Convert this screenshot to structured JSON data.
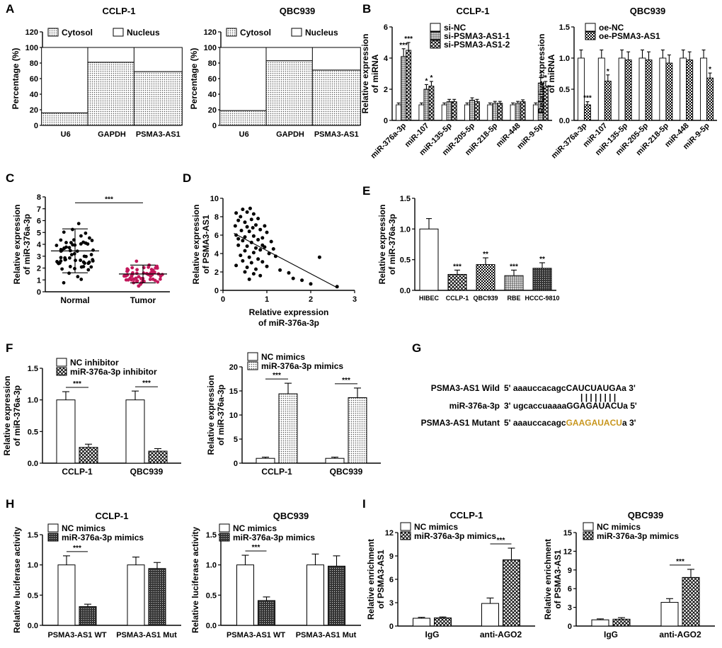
{
  "panels": {
    "A": {
      "label": "A",
      "charts": [
        {
          "title": "CCLP-1",
          "type": "stacked-bar",
          "ylabel": "Percentage (%)",
          "ylim": [
            0,
            120
          ],
          "yticks": [
            0,
            20,
            40,
            60,
            80,
            100,
            120
          ],
          "categories": [
            "U6",
            "GAPDH",
            "PSMA3-AS1"
          ],
          "legend": [
            "Cytosol",
            "Nucleus"
          ],
          "series": [
            {
              "name": "Cytosol",
              "values": [
                16,
                81,
                69
              ]
            },
            {
              "name": "Nucleus",
              "values": [
                84,
                19,
                31
              ]
            }
          ]
        },
        {
          "title": "QBC939",
          "type": "stacked-bar",
          "ylabel": "Percentage (%)",
          "ylim": [
            0,
            120
          ],
          "yticks": [
            0,
            20,
            40,
            60,
            80,
            100,
            120
          ],
          "categories": [
            "U6",
            "GAPDH",
            "PSMA3-AS1"
          ],
          "legend": [
            "Cytosol",
            "Nucleus"
          ],
          "series": [
            {
              "name": "Cytosol",
              "values": [
                19,
                83,
                71
              ]
            },
            {
              "name": "Nucleus",
              "values": [
                81,
                17,
                29
              ]
            }
          ]
        }
      ]
    },
    "B": {
      "label": "B",
      "charts": [
        {
          "title": "CCLP-1",
          "type": "bar",
          "ylabel": [
            "Relative expression",
            "of miRNA"
          ],
          "ylim": [
            0,
            6
          ],
          "yticks": [
            0,
            2,
            4,
            6
          ],
          "categories": [
            "miR-376a-3p",
            "miR-107",
            "miR-135-5p",
            "miR-205-5p",
            "miR-218-5p",
            "miR-448",
            "miR-9-5p"
          ],
          "series": [
            {
              "name": "si-NC",
              "values": [
                1.0,
                1.0,
                1.0,
                1.0,
                1.0,
                1.0,
                1.0
              ],
              "err": [
                0.12,
                0.12,
                0.12,
                0.12,
                0.12,
                0.12,
                0.12
              ],
              "sig": [
                "",
                "",
                "",
                "",
                "",
                "",
                ""
              ]
            },
            {
              "name": "si-PSMA3-AS1-1",
              "values": [
                4.1,
                2.0,
                1.2,
                1.3,
                1.1,
                1.1,
                2.4
              ],
              "err": [
                0.5,
                0.3,
                0.15,
                0.15,
                0.12,
                0.12,
                0.35
              ],
              "sig": [
                "***",
                "*",
                "",
                "",
                "",
                "",
                "*"
              ]
            },
            {
              "name": "si-PSMA3-AS1-2",
              "values": [
                4.5,
                2.2,
                1.2,
                1.2,
                1.1,
                1.2,
                2.2
              ],
              "err": [
                0.5,
                0.3,
                0.15,
                0.15,
                0.12,
                0.12,
                0.3
              ],
              "sig": [
                "***",
                "*",
                "",
                "",
                "",
                "",
                "*"
              ]
            }
          ]
        },
        {
          "title": "QBC939",
          "type": "bar",
          "ylabel": [
            "Relative expression",
            "of miRNA"
          ],
          "ylim": [
            0,
            1.5
          ],
          "yticks": [
            0.0,
            0.5,
            1.0,
            1.5
          ],
          "categories": [
            "miR-376a-3p",
            "miR-107",
            "miR-135-5p",
            "miR-205-5p",
            "miR-218-5p",
            "miR-448",
            "miR-9-5p"
          ],
          "series": [
            {
              "name": "oe-NC",
              "values": [
                1.0,
                1.0,
                1.0,
                1.0,
                1.0,
                1.0,
                1.0
              ],
              "err": [
                0.13,
                0.13,
                0.13,
                0.13,
                0.13,
                0.13,
                0.13
              ],
              "sig": [
                "",
                "",
                "",
                "",
                "",
                "",
                ""
              ]
            },
            {
              "name": "oe-PSMA3-AS1",
              "values": [
                0.25,
                0.63,
                0.97,
                0.97,
                0.92,
                0.97,
                0.68
              ],
              "err": [
                0.05,
                0.1,
                0.13,
                0.13,
                0.13,
                0.13,
                0.08
              ],
              "sig": [
                "***",
                "*",
                "",
                "",
                "",
                "",
                "*"
              ]
            }
          ]
        }
      ]
    },
    "C": {
      "label": "C",
      "type": "scatter-dot",
      "ylabel": [
        "Relative expression",
        "of miR-376a-3p"
      ],
      "ylim": [
        0,
        8
      ],
      "yticks": [
        0,
        1,
        2,
        3,
        4,
        5,
        6,
        7,
        8
      ],
      "categories": [
        "Normal",
        "Tumor"
      ],
      "mean": [
        3.45,
        1.5
      ],
      "sd": [
        1.85,
        0.75
      ],
      "sig": "***"
    },
    "D": {
      "label": "D",
      "type": "scatter",
      "xlabel": [
        "Relative expression",
        "of miR-376a-3p"
      ],
      "ylabel": [
        "Relative expression",
        "of PSMA3-AS1"
      ],
      "xlim": [
        0,
        3
      ],
      "ylim": [
        0,
        10
      ],
      "xticks": [
        0,
        1,
        2,
        3
      ],
      "yticks": [
        0,
        2,
        4,
        6,
        8,
        10
      ],
      "fit": {
        "x0": 0.25,
        "y0": 6.2,
        "x1": 2.6,
        "y1": 0.3
      },
      "points": [
        [
          0.3,
          8.4
        ],
        [
          0.45,
          8.8
        ],
        [
          0.55,
          8.5
        ],
        [
          0.62,
          8.9
        ],
        [
          0.4,
          8.0
        ],
        [
          0.7,
          8.3
        ],
        [
          0.35,
          7.6
        ],
        [
          0.5,
          7.4
        ],
        [
          0.65,
          7.7
        ],
        [
          0.8,
          7.8
        ],
        [
          0.28,
          7.0
        ],
        [
          0.55,
          6.9
        ],
        [
          0.75,
          7.1
        ],
        [
          0.95,
          7.0
        ],
        [
          0.42,
          6.5
        ],
        [
          0.6,
          6.4
        ],
        [
          0.85,
          6.6
        ],
        [
          1.0,
          6.3
        ],
        [
          0.3,
          6.0
        ],
        [
          0.5,
          5.8
        ],
        [
          0.7,
          5.9
        ],
        [
          0.9,
          5.7
        ],
        [
          0.45,
          5.4
        ],
        [
          0.65,
          5.2
        ],
        [
          0.8,
          5.5
        ],
        [
          1.1,
          5.3
        ],
        [
          0.35,
          4.9
        ],
        [
          0.55,
          4.8
        ],
        [
          0.75,
          4.6
        ],
        [
          0.95,
          4.7
        ],
        [
          0.5,
          4.3
        ],
        [
          0.7,
          4.1
        ],
        [
          0.85,
          4.4
        ],
        [
          1.05,
          4.0
        ],
        [
          0.4,
          3.8
        ],
        [
          0.6,
          3.6
        ],
        [
          0.8,
          3.4
        ],
        [
          1.2,
          3.7
        ],
        [
          0.45,
          3.2
        ],
        [
          0.65,
          3.0
        ],
        [
          0.9,
          3.1
        ],
        [
          0.3,
          2.7
        ],
        [
          0.55,
          2.5
        ],
        [
          0.75,
          2.3
        ],
        [
          1.0,
          2.6
        ],
        [
          0.5,
          2.0
        ],
        [
          0.7,
          1.8
        ],
        [
          0.85,
          1.6
        ],
        [
          0.6,
          1.2
        ],
        [
          1.3,
          2.2
        ],
        [
          1.5,
          1.9
        ],
        [
          1.6,
          1.3
        ],
        [
          1.8,
          1.1
        ],
        [
          2.0,
          0.7
        ],
        [
          2.2,
          3.6
        ],
        [
          2.6,
          0.4
        ],
        [
          0.35,
          5.6
        ],
        [
          0.68,
          6.8
        ],
        [
          0.9,
          4.9
        ],
        [
          1.15,
          4.5
        ]
      ]
    },
    "E": {
      "label": "E",
      "type": "bar",
      "ylabel": [
        "Relative expression",
        "of miR-376a-3p"
      ],
      "ylim": [
        0,
        1.5
      ],
      "yticks": [
        0.0,
        0.5,
        1.0,
        1.5
      ],
      "categories": [
        "HIBEC",
        "CCLP-1",
        "QBC939",
        "RBE",
        "HCCC-9810"
      ],
      "values": [
        1.0,
        0.26,
        0.42,
        0.24,
        0.36
      ],
      "err": [
        0.17,
        0.07,
        0.11,
        0.09,
        0.09
      ],
      "sig": [
        "",
        "***",
        "**",
        "***",
        "**"
      ]
    },
    "F": {
      "label": "F",
      "charts": [
        {
          "type": "bar",
          "ylabel": [
            "Relative expression",
            "of miR-376a-3p"
          ],
          "ylim": [
            0,
            1.5
          ],
          "yticks": [
            0.0,
            0.5,
            1.0,
            1.5
          ],
          "categories": [
            "CCLP-1",
            "QBC939"
          ],
          "series": [
            {
              "name": "NC inhibitor",
              "values": [
                1.0,
                1.0
              ],
              "err": [
                0.13,
                0.14
              ]
            },
            {
              "name": "miR-376a-3p inhibitor",
              "values": [
                0.25,
                0.19
              ],
              "err": [
                0.05,
                0.04
              ]
            }
          ],
          "sig": [
            "***",
            "***"
          ]
        },
        {
          "type": "bar",
          "ylabel": [
            "Relative expression",
            "of miR-376a-3p"
          ],
          "ylim": [
            0,
            20
          ],
          "yticks": [
            0,
            5,
            10,
            15,
            20
          ],
          "categories": [
            "CCLP-1",
            "QBC939"
          ],
          "series": [
            {
              "name": "NC mimics",
              "values": [
                1.0,
                1.0
              ],
              "err": [
                0.25,
                0.25
              ]
            },
            {
              "name": "miR-376a-3p mimics",
              "values": [
                14.4,
                13.6
              ],
              "err": [
                2.2,
                2.0
              ]
            }
          ],
          "sig": [
            "***",
            "***"
          ]
        }
      ]
    },
    "G": {
      "label": "G",
      "rows": [
        {
          "name": "PSMA3-AS1 Wild",
          "prefix": "5' aaauccacagc",
          "core": "CAUCUAUGA",
          "suffix": "a 3'"
        },
        {
          "name": "",
          "pairs": "| | | | | | | |"
        },
        {
          "name": "miR-376a-3p",
          "prefix": "3' ugcaccuaaaa",
          "core": "GGAGAUACU",
          "suffix": "a 5'"
        },
        {
          "name": "PSMA3-AS1 Mutant",
          "prefix": "5' aaauccacagc",
          "core": "GAAGAUACU",
          "suffix": "a 3'"
        }
      ],
      "mutant_color": "#c8961e"
    },
    "H": {
      "label": "H",
      "charts": [
        {
          "title": "CCLP-1",
          "type": "bar",
          "ylabel": "Relative luciferase activity",
          "ylim": [
            0,
            1.5
          ],
          "yticks": [
            0.0,
            0.5,
            1.0,
            1.5
          ],
          "categories": [
            "PSMA3-AS1 WT",
            "PSMA3-AS1 Mut"
          ],
          "series": [
            {
              "name": "NC mimics",
              "values": [
                1.0,
                1.0
              ],
              "err": [
                0.15,
                0.13
              ]
            },
            {
              "name": "miR-376a-3p mimics",
              "values": [
                0.31,
                0.94
              ],
              "err": [
                0.04,
                0.1
              ]
            }
          ],
          "sig": [
            "***",
            ""
          ]
        },
        {
          "title": "QBC939",
          "type": "bar",
          "ylabel": "Relative luciferase activity",
          "ylim": [
            0,
            1.5
          ],
          "yticks": [
            0.0,
            0.5,
            1.0,
            1.5
          ],
          "categories": [
            "PSMA3-AS1 WT",
            "PSMA3-AS1 Mut"
          ],
          "series": [
            {
              "name": "NC mimics",
              "values": [
                1.0,
                1.0
              ],
              "err": [
                0.16,
                0.18
              ]
            },
            {
              "name": "miR-376a-3p mimics",
              "values": [
                0.41,
                0.98
              ],
              "err": [
                0.06,
                0.17
              ]
            }
          ],
          "sig": [
            "***",
            ""
          ]
        }
      ]
    },
    "I": {
      "label": "I",
      "charts": [
        {
          "title": "CCLP-1",
          "type": "bar",
          "ylabel": [
            "Relative enrichment",
            "of PSMA3-AS1"
          ],
          "ylim": [
            0,
            12
          ],
          "yticks": [
            0,
            3,
            6,
            9,
            12
          ],
          "categories": [
            "IgG",
            "anti-AGO2"
          ],
          "series": [
            {
              "name": "NC mimics",
              "values": [
                1.0,
                2.9
              ],
              "err": [
                0.12,
                0.7
              ]
            },
            {
              "name": "miR-376a-3p mimics",
              "values": [
                1.05,
                8.5
              ],
              "err": [
                0.12,
                1.5
              ]
            }
          ],
          "sig": [
            "",
            "***"
          ]
        },
        {
          "title": "QBC939",
          "type": "bar",
          "ylabel": [
            "Relative enrichment",
            "of PSMA3-AS1"
          ],
          "ylim": [
            0,
            15
          ],
          "yticks": [
            0,
            3,
            6,
            9,
            12,
            15
          ],
          "categories": [
            "IgG",
            "anti-AGO2"
          ],
          "series": [
            {
              "name": "NC mimics",
              "values": [
                1.0,
                3.8
              ],
              "err": [
                0.15,
                0.6
              ]
            },
            {
              "name": "miR-376a-3p mimics",
              "values": [
                1.1,
                7.8
              ],
              "err": [
                0.25,
                1.3
              ]
            }
          ],
          "sig": [
            "",
            "***"
          ]
        }
      ]
    }
  }
}
